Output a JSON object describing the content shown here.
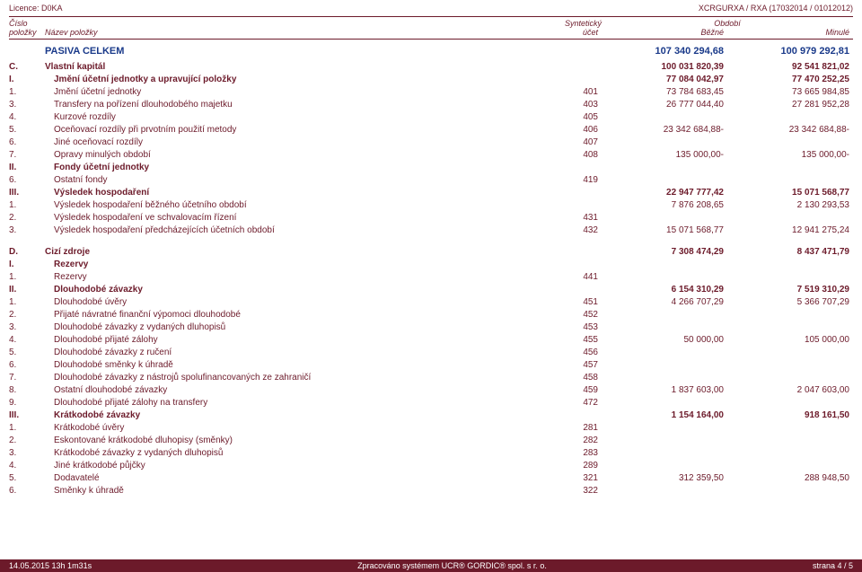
{
  "header": {
    "licence": "Licence: D0KA",
    "code": "XCRGURXA / RXA (17032014 / 01012012)",
    "cislo": "Číslo",
    "polozky": "položky",
    "nazev": "Název položky",
    "synteticky": "Syntetický",
    "ucet": "účet",
    "obdobi": "Období",
    "bezne": "Běžné",
    "minule": "Minulé"
  },
  "total": {
    "label": "PASIVA CELKEM",
    "run": "107 340 294,68",
    "prev": "100 979 292,81"
  },
  "rows": [
    {
      "num": "C.",
      "name": "Vlastní kapitál",
      "synt": "",
      "run": "100 031 820,39",
      "prev": "92 541 821,02",
      "b": true
    },
    {
      "num": "I.",
      "name": "Jmění účetní jednotky a upravující položky",
      "synt": "",
      "run": "77 084 042,97",
      "prev": "77 470 252,25",
      "b": true,
      "in": 1
    },
    {
      "num": "1.",
      "name": "Jmění účetní jednotky",
      "synt": "401",
      "run": "73 784 683,45",
      "prev": "73 665 984,85",
      "in": 2
    },
    {
      "num": "3.",
      "name": "Transfery na pořízení dlouhodobého majetku",
      "synt": "403",
      "run": "26 777 044,40",
      "prev": "27 281 952,28",
      "in": 2
    },
    {
      "num": "4.",
      "name": "Kurzové rozdíly",
      "synt": "405",
      "run": "",
      "prev": "",
      "in": 2
    },
    {
      "num": "5.",
      "name": "Oceňovací rozdíly při prvotním použití metody",
      "synt": "406",
      "run": "23 342 684,88-",
      "prev": "23 342 684,88-",
      "in": 2
    },
    {
      "num": "6.",
      "name": "Jiné oceňovací rozdíly",
      "synt": "407",
      "run": "",
      "prev": "",
      "in": 2
    },
    {
      "num": "7.",
      "name": "Opravy minulých období",
      "synt": "408",
      "run": "135 000,00-",
      "prev": "135 000,00-",
      "in": 2
    },
    {
      "num": "II.",
      "name": "Fondy účetní jednotky",
      "synt": "",
      "run": "",
      "prev": "",
      "b": true,
      "in": 1
    },
    {
      "num": "6.",
      "name": "Ostatní fondy",
      "synt": "419",
      "run": "",
      "prev": "",
      "in": 2
    },
    {
      "num": "III.",
      "name": "Výsledek hospodaření",
      "synt": "",
      "run": "22 947 777,42",
      "prev": "15 071 568,77",
      "b": true,
      "in": 1
    },
    {
      "num": "1.",
      "name": "Výsledek hospodaření běžného účetního období",
      "synt": "",
      "run": "7 876 208,65",
      "prev": "2 130 293,53",
      "in": 2
    },
    {
      "num": "2.",
      "name": "Výsledek hospodaření ve schvalovacím řízení",
      "synt": "431",
      "run": "",
      "prev": "",
      "in": 2
    },
    {
      "num": "3.",
      "name": "Výsledek hospodaření předcházejících účetních období",
      "synt": "432",
      "run": "15 071 568,77",
      "prev": "12 941 275,24",
      "in": 2
    }
  ],
  "rows2": [
    {
      "num": "D.",
      "name": "Cizí zdroje",
      "synt": "",
      "run": "7 308 474,29",
      "prev": "8 437 471,79",
      "b": true
    },
    {
      "num": "I.",
      "name": "Rezervy",
      "synt": "",
      "run": "",
      "prev": "",
      "b": true,
      "in": 1
    },
    {
      "num": "1.",
      "name": "Rezervy",
      "synt": "441",
      "run": "",
      "prev": "",
      "in": 2
    },
    {
      "num": "II.",
      "name": "Dlouhodobé závazky",
      "synt": "",
      "run": "6 154 310,29",
      "prev": "7 519 310,29",
      "b": true,
      "in": 1
    },
    {
      "num": "1.",
      "name": "Dlouhodobé úvěry",
      "synt": "451",
      "run": "4 266 707,29",
      "prev": "5 366 707,29",
      "in": 2
    },
    {
      "num": "2.",
      "name": "Přijaté návratné finanční výpomoci dlouhodobé",
      "synt": "452",
      "run": "",
      "prev": "",
      "in": 2
    },
    {
      "num": "3.",
      "name": "Dlouhodobé závazky z vydaných dluhopisů",
      "synt": "453",
      "run": "",
      "prev": "",
      "in": 2
    },
    {
      "num": "4.",
      "name": "Dlouhodobé přijaté zálohy",
      "synt": "455",
      "run": "50 000,00",
      "prev": "105 000,00",
      "in": 2
    },
    {
      "num": "5.",
      "name": "Dlouhodobé závazky z ručení",
      "synt": "456",
      "run": "",
      "prev": "",
      "in": 2
    },
    {
      "num": "6.",
      "name": "Dlouhodobé směnky k úhradě",
      "synt": "457",
      "run": "",
      "prev": "",
      "in": 2
    },
    {
      "num": "7.",
      "name": "Dlouhodobé závazky z nástrojů spolufinancovaných ze zahraničí",
      "synt": "458",
      "run": "",
      "prev": "",
      "in": 2
    },
    {
      "num": "8.",
      "name": "Ostatní dlouhodobé závazky",
      "synt": "459",
      "run": "1 837 603,00",
      "prev": "2 047 603,00",
      "in": 2
    },
    {
      "num": "9.",
      "name": "Dlouhodobé přijaté zálohy na transfery",
      "synt": "472",
      "run": "",
      "prev": "",
      "in": 2
    },
    {
      "num": "III.",
      "name": "Krátkodobé závazky",
      "synt": "",
      "run": "1 154 164,00",
      "prev": "918 161,50",
      "b": true,
      "in": 1
    },
    {
      "num": "1.",
      "name": "Krátkodobé úvěry",
      "synt": "281",
      "run": "",
      "prev": "",
      "in": 2
    },
    {
      "num": "2.",
      "name": "Eskontované krátkodobé dluhopisy (směnky)",
      "synt": "282",
      "run": "",
      "prev": "",
      "in": 2
    },
    {
      "num": "3.",
      "name": "Krátkodobé závazky z vydaných dluhopisů",
      "synt": "283",
      "run": "",
      "prev": "",
      "in": 2
    },
    {
      "num": "4.",
      "name": "Jiné krátkodobé půjčky",
      "synt": "289",
      "run": "",
      "prev": "",
      "in": 2
    },
    {
      "num": "5.",
      "name": "Dodavatelé",
      "synt": "321",
      "run": "312 359,50",
      "prev": "288 948,50",
      "in": 2
    },
    {
      "num": "6.",
      "name": "Směnky k úhradě",
      "synt": "322",
      "run": "",
      "prev": "",
      "in": 2
    }
  ],
  "footer": {
    "left": "14.05.2015 13h 1m31s",
    "mid": "Zpracováno systémem  UCR® GORDIC® spol. s  r. o.",
    "right": "strana 4 / 5"
  },
  "style": {
    "accent": "#6c1a2a",
    "total_color": "#1a3a8a",
    "bg": "#ffffff"
  }
}
